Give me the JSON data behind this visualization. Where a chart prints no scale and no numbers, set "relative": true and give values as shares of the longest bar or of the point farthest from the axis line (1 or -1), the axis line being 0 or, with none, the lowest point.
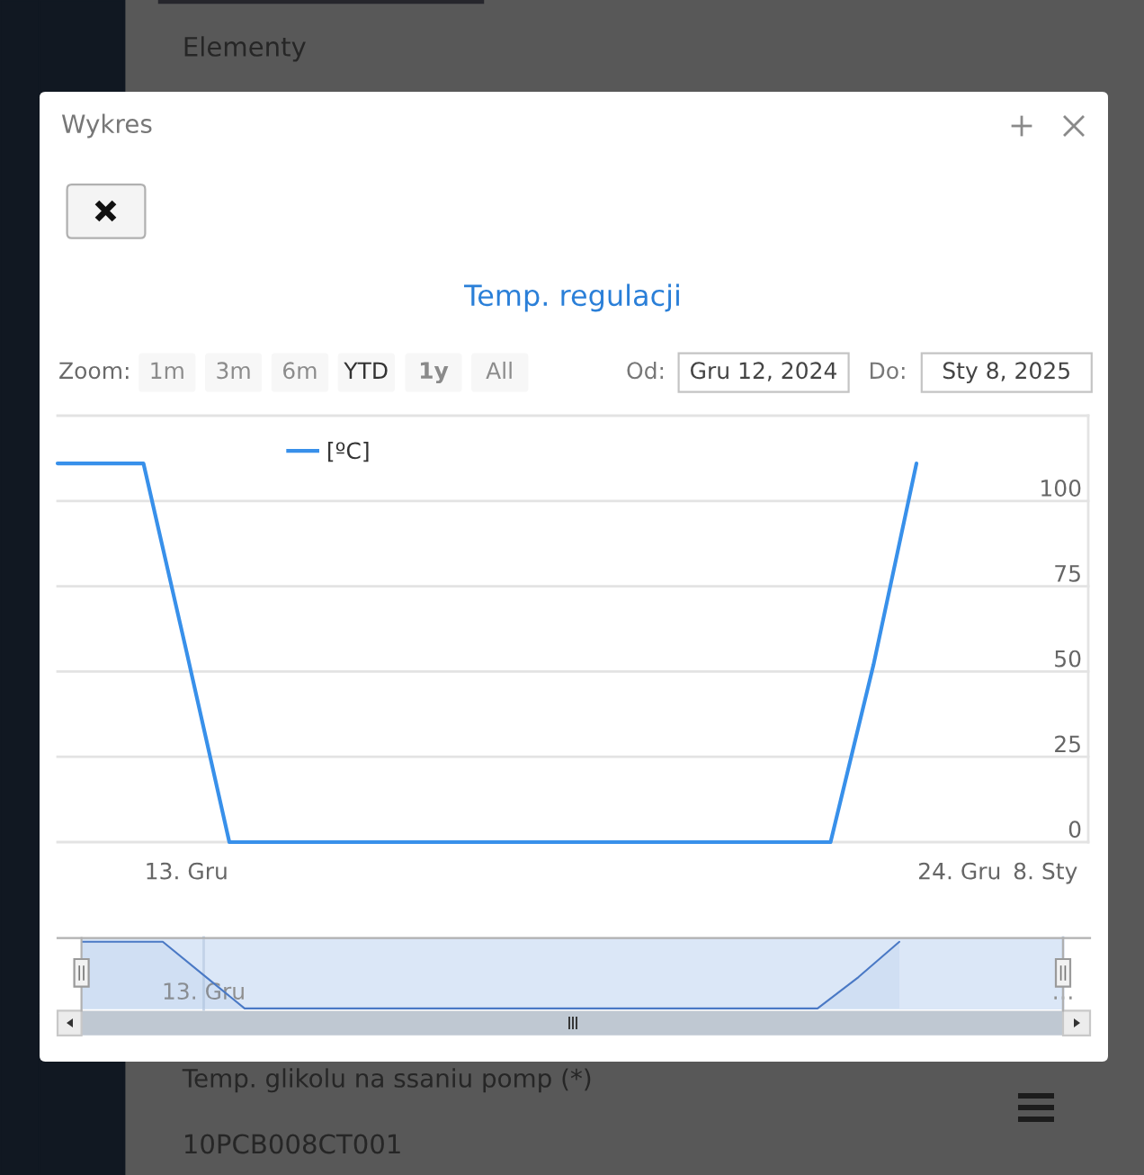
{
  "chart_data": [
    {
      "type": "line",
      "title": "Temp. regulacji",
      "categories": [
        null,
        null,
        null,
        "13. Gru",
        null,
        null,
        null,
        null,
        null,
        null,
        null,
        null,
        null,
        null,
        null,
        null,
        null,
        null,
        null,
        null,
        null,
        "24. Gru",
        null,
        "8. Sty",
        null
      ],
      "series": [
        {
          "name": "[ºC]",
          "color": "#3890ea",
          "values": [
            111,
            111,
            111,
            56,
            0,
            0,
            0,
            0,
            0,
            0,
            0,
            0,
            0,
            0,
            0,
            0,
            0,
            0,
            0,
            52,
            111,
            null,
            null,
            null,
            null
          ]
        }
      ],
      "ylim": [
        0,
        125
      ],
      "yticks": [
        0,
        25,
        50,
        75,
        100,
        {
          "value": 125,
          "label": null
        }
      ],
      "grid": "y",
      "legend": "top left",
      "annotations": [
        "Wykres",
        "Zoom:",
        "1m",
        "3m",
        "6m",
        "YTD",
        "1y",
        "All",
        "Od:",
        "Gru 12, 2024",
        "Do:",
        "Sty 8, 2025",
        "Elementy",
        "Temp. glikolu na ssaniu pomp (*)",
        "10PCB008CT001"
      ]
    },
    {
      "type": "area",
      "relative": true,
      "categories": [
        null,
        null,
        null,
        "13. Gru",
        null,
        null,
        null,
        null,
        null,
        null,
        null,
        null,
        null,
        null,
        null,
        null,
        null,
        null,
        null,
        null,
        null,
        null,
        null,
        null,
        "…"
      ],
      "series": [
        {
          "color": "#4a79c5",
          "values": [
            1,
            1,
            1,
            0.5,
            0,
            0,
            0,
            0,
            0,
            0,
            0,
            0,
            0,
            0,
            0,
            0,
            0,
            0,
            0,
            0.47,
            1,
            null,
            null,
            null,
            null
          ]
        }
      ],
      "grid": "x",
      "tick_labels": "x"
    }
  ]
}
